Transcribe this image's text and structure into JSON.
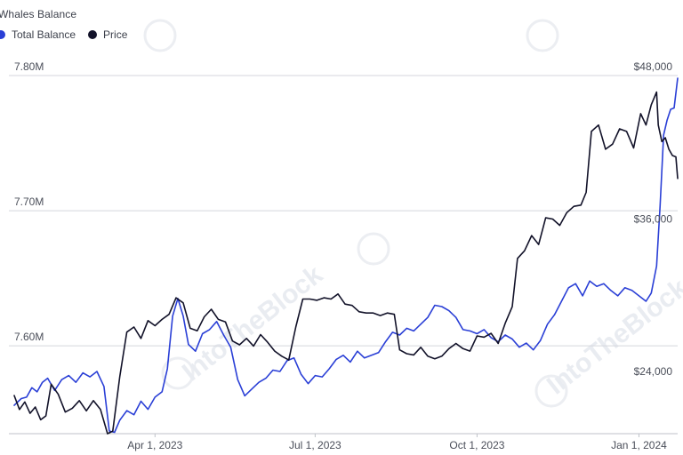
{
  "legend": {
    "total_balance_label": "Total Balance",
    "price_label": "Price"
  },
  "watermark": "IntoTheBlock",
  "colors": {
    "total_balance": "#2a3fd6",
    "price": "#121229",
    "gridline": "#d4d6dc",
    "axis": "#bfc2c9",
    "text": "#3b3f4a"
  },
  "chart_data": {
    "type": "line",
    "title": "Whales Balance",
    "xlabel": "",
    "ylabel": "",
    "x_range": [
      "2023-01-11",
      "2024-01-23"
    ],
    "x_ticks": [
      {
        "date": "2023-04-01",
        "label": "Apr 1, 2023"
      },
      {
        "date": "2023-07-01",
        "label": "Jul 1, 2023"
      },
      {
        "date": "2023-10-01",
        "label": "Oct 1, 2023"
      },
      {
        "date": "2024-01-01",
        "label": "Jan 1, 2024"
      }
    ],
    "y_left": {
      "range": [
        7.535,
        7.8
      ],
      "ticks": [
        {
          "value": 7.6,
          "label": "7.60M"
        },
        {
          "value": 7.7,
          "label": "7.70M"
        },
        {
          "value": 7.8,
          "label": "7.80M"
        }
      ]
    },
    "y_right": {
      "range": [
        19800,
        48000
      ],
      "ticks": [
        {
          "value": 24000,
          "label": "$24,000"
        },
        {
          "value": 36000,
          "label": "$36,000"
        },
        {
          "value": 48000,
          "label": "$48,000"
        }
      ]
    },
    "grid": true,
    "legend_position": "top-left",
    "series": [
      {
        "name": "Total Balance",
        "axis": "left",
        "color": "#2a3fd6",
        "points": [
          [
            "2023-01-11",
            7.556
          ],
          [
            "2023-01-15",
            7.561
          ],
          [
            "2023-01-18",
            7.562
          ],
          [
            "2023-01-21",
            7.569
          ],
          [
            "2023-01-24",
            7.566
          ],
          [
            "2023-01-27",
            7.573
          ],
          [
            "2023-01-30",
            7.576
          ],
          [
            "2023-02-03",
            7.567
          ],
          [
            "2023-02-07",
            7.575
          ],
          [
            "2023-02-11",
            7.578
          ],
          [
            "2023-02-15",
            7.573
          ],
          [
            "2023-02-19",
            7.58
          ],
          [
            "2023-02-23",
            7.577
          ],
          [
            "2023-02-27",
            7.581
          ],
          [
            "2023-03-03",
            7.57
          ],
          [
            "2023-03-06",
            7.537
          ],
          [
            "2023-03-09",
            7.536
          ],
          [
            "2023-03-12",
            7.545
          ],
          [
            "2023-03-16",
            7.552
          ],
          [
            "2023-03-20",
            7.549
          ],
          [
            "2023-03-24",
            7.559
          ],
          [
            "2023-03-28",
            7.553
          ],
          [
            "2023-04-01",
            7.562
          ],
          [
            "2023-04-05",
            7.566
          ],
          [
            "2023-04-08",
            7.583
          ],
          [
            "2023-04-11",
            7.622
          ],
          [
            "2023-04-14",
            7.635
          ],
          [
            "2023-04-17",
            7.622
          ],
          [
            "2023-04-20",
            7.601
          ],
          [
            "2023-04-24",
            7.596
          ],
          [
            "2023-04-28",
            7.609
          ],
          [
            "2023-05-02",
            7.612
          ],
          [
            "2023-05-06",
            7.618
          ],
          [
            "2023-05-10",
            7.608
          ],
          [
            "2023-05-14",
            7.599
          ],
          [
            "2023-05-18",
            7.575
          ],
          [
            "2023-05-22",
            7.563
          ],
          [
            "2023-05-26",
            7.568
          ],
          [
            "2023-05-30",
            7.573
          ],
          [
            "2023-06-03",
            7.576
          ],
          [
            "2023-06-07",
            7.582
          ],
          [
            "2023-06-11",
            7.581
          ],
          [
            "2023-06-15",
            7.589
          ],
          [
            "2023-06-19",
            7.591
          ],
          [
            "2023-06-23",
            7.579
          ],
          [
            "2023-06-27",
            7.572
          ],
          [
            "2023-07-01",
            7.578
          ],
          [
            "2023-07-05",
            7.577
          ],
          [
            "2023-07-09",
            7.583
          ],
          [
            "2023-07-13",
            7.59
          ],
          [
            "2023-07-17",
            7.593
          ],
          [
            "2023-07-21",
            7.588
          ],
          [
            "2023-07-25",
            7.596
          ],
          [
            "2023-07-29",
            7.591
          ],
          [
            "2023-08-02",
            7.593
          ],
          [
            "2023-08-06",
            7.595
          ],
          [
            "2023-08-10",
            7.603
          ],
          [
            "2023-08-14",
            7.61
          ],
          [
            "2023-08-18",
            7.608
          ],
          [
            "2023-08-22",
            7.613
          ],
          [
            "2023-08-26",
            7.611
          ],
          [
            "2023-08-30",
            7.616
          ],
          [
            "2023-09-03",
            7.621
          ],
          [
            "2023-09-07",
            7.63
          ],
          [
            "2023-09-11",
            7.629
          ],
          [
            "2023-09-15",
            7.626
          ],
          [
            "2023-09-19",
            7.621
          ],
          [
            "2023-09-23",
            7.612
          ],
          [
            "2023-09-27",
            7.611
          ],
          [
            "2023-10-01",
            7.609
          ],
          [
            "2023-10-05",
            7.612
          ],
          [
            "2023-10-09",
            7.606
          ],
          [
            "2023-10-13",
            7.603
          ],
          [
            "2023-10-17",
            7.608
          ],
          [
            "2023-10-21",
            7.605
          ],
          [
            "2023-10-25",
            7.599
          ],
          [
            "2023-10-29",
            7.602
          ],
          [
            "2023-11-02",
            7.597
          ],
          [
            "2023-11-06",
            7.604
          ],
          [
            "2023-11-10",
            7.616
          ],
          [
            "2023-11-14",
            7.623
          ],
          [
            "2023-11-18",
            7.633
          ],
          [
            "2023-11-22",
            7.643
          ],
          [
            "2023-11-26",
            7.646
          ],
          [
            "2023-11-30",
            7.637
          ],
          [
            "2023-12-04",
            7.648
          ],
          [
            "2023-12-08",
            7.644
          ],
          [
            "2023-12-12",
            7.646
          ],
          [
            "2023-12-16",
            7.641
          ],
          [
            "2023-12-20",
            7.637
          ],
          [
            "2023-12-24",
            7.643
          ],
          [
            "2023-12-28",
            7.641
          ],
          [
            "2024-01-01",
            7.637
          ],
          [
            "2024-01-05",
            7.633
          ],
          [
            "2024-01-08",
            7.639
          ],
          [
            "2024-01-11",
            7.659
          ],
          [
            "2024-01-13",
            7.703
          ],
          [
            "2024-01-15",
            7.756
          ],
          [
            "2024-01-17",
            7.767
          ],
          [
            "2024-01-19",
            7.775
          ],
          [
            "2024-01-21",
            7.776
          ],
          [
            "2024-01-23",
            7.798
          ]
        ]
      },
      {
        "name": "Price",
        "axis": "right",
        "color": "#121229",
        "points": [
          [
            "2023-01-11",
            22800
          ],
          [
            "2023-01-14",
            21700
          ],
          [
            "2023-01-17",
            22300
          ],
          [
            "2023-01-20",
            21400
          ],
          [
            "2023-01-23",
            21900
          ],
          [
            "2023-01-26",
            20900
          ],
          [
            "2023-01-29",
            21200
          ],
          [
            "2023-02-01",
            23700
          ],
          [
            "2023-02-05",
            22900
          ],
          [
            "2023-02-09",
            21500
          ],
          [
            "2023-02-13",
            21800
          ],
          [
            "2023-02-17",
            22400
          ],
          [
            "2023-02-21",
            21600
          ],
          [
            "2023-02-25",
            22400
          ],
          [
            "2023-03-01",
            21700
          ],
          [
            "2023-03-05",
            19800
          ],
          [
            "2023-03-08",
            20000
          ],
          [
            "2023-03-12",
            24300
          ],
          [
            "2023-03-16",
            27800
          ],
          [
            "2023-03-20",
            28200
          ],
          [
            "2023-03-24",
            27300
          ],
          [
            "2023-03-28",
            28700
          ],
          [
            "2023-04-01",
            28300
          ],
          [
            "2023-04-05",
            28800
          ],
          [
            "2023-04-09",
            29200
          ],
          [
            "2023-04-13",
            30500
          ],
          [
            "2023-04-17",
            30100
          ],
          [
            "2023-04-21",
            28100
          ],
          [
            "2023-04-25",
            27900
          ],
          [
            "2023-04-29",
            29000
          ],
          [
            "2023-05-03",
            29600
          ],
          [
            "2023-05-07",
            28800
          ],
          [
            "2023-05-11",
            28600
          ],
          [
            "2023-05-15",
            27100
          ],
          [
            "2023-05-19",
            26800
          ],
          [
            "2023-05-23",
            27300
          ],
          [
            "2023-05-27",
            26700
          ],
          [
            "2023-05-31",
            27600
          ],
          [
            "2023-06-04",
            27000
          ],
          [
            "2023-06-08",
            26300
          ],
          [
            "2023-06-12",
            25900
          ],
          [
            "2023-06-16",
            25600
          ],
          [
            "2023-06-20",
            28200
          ],
          [
            "2023-06-24",
            30400
          ],
          [
            "2023-06-28",
            30400
          ],
          [
            "2023-07-02",
            30300
          ],
          [
            "2023-07-06",
            30500
          ],
          [
            "2023-07-10",
            30400
          ],
          [
            "2023-07-14",
            30800
          ],
          [
            "2023-07-18",
            30000
          ],
          [
            "2023-07-22",
            29900
          ],
          [
            "2023-07-26",
            29400
          ],
          [
            "2023-07-30",
            29300
          ],
          [
            "2023-08-03",
            29300
          ],
          [
            "2023-08-07",
            29100
          ],
          [
            "2023-08-11",
            29300
          ],
          [
            "2023-08-15",
            29200
          ],
          [
            "2023-08-18",
            26400
          ],
          [
            "2023-08-22",
            26100
          ],
          [
            "2023-08-26",
            26000
          ],
          [
            "2023-08-30",
            26600
          ],
          [
            "2023-09-03",
            25900
          ],
          [
            "2023-09-07",
            25700
          ],
          [
            "2023-09-11",
            25900
          ],
          [
            "2023-09-15",
            26500
          ],
          [
            "2023-09-19",
            26900
          ],
          [
            "2023-09-23",
            26500
          ],
          [
            "2023-09-27",
            26300
          ],
          [
            "2023-10-01",
            27500
          ],
          [
            "2023-10-05",
            27400
          ],
          [
            "2023-10-09",
            27700
          ],
          [
            "2023-10-13",
            26900
          ],
          [
            "2023-10-17",
            28500
          ],
          [
            "2023-10-21",
            29800
          ],
          [
            "2023-10-24",
            33600
          ],
          [
            "2023-10-28",
            34200
          ],
          [
            "2023-11-01",
            35400
          ],
          [
            "2023-11-05",
            34700
          ],
          [
            "2023-11-09",
            36800
          ],
          [
            "2023-11-13",
            36700
          ],
          [
            "2023-11-17",
            36200
          ],
          [
            "2023-11-21",
            37200
          ],
          [
            "2023-11-25",
            37700
          ],
          [
            "2023-11-29",
            37800
          ],
          [
            "2023-12-02",
            38800
          ],
          [
            "2023-12-05",
            43600
          ],
          [
            "2023-12-09",
            44100
          ],
          [
            "2023-12-13",
            42200
          ],
          [
            "2023-12-17",
            42600
          ],
          [
            "2023-12-21",
            43800
          ],
          [
            "2023-12-25",
            43600
          ],
          [
            "2023-12-29",
            42300
          ],
          [
            "2024-01-02",
            45000
          ],
          [
            "2024-01-05",
            44100
          ],
          [
            "2024-01-08",
            45700
          ],
          [
            "2024-01-11",
            46700
          ],
          [
            "2024-01-12",
            44100
          ],
          [
            "2024-01-14",
            42800
          ],
          [
            "2024-01-16",
            43100
          ],
          [
            "2024-01-18",
            42200
          ],
          [
            "2024-01-20",
            41700
          ],
          [
            "2024-01-22",
            41600
          ],
          [
            "2024-01-23",
            39900
          ]
        ]
      }
    ]
  }
}
